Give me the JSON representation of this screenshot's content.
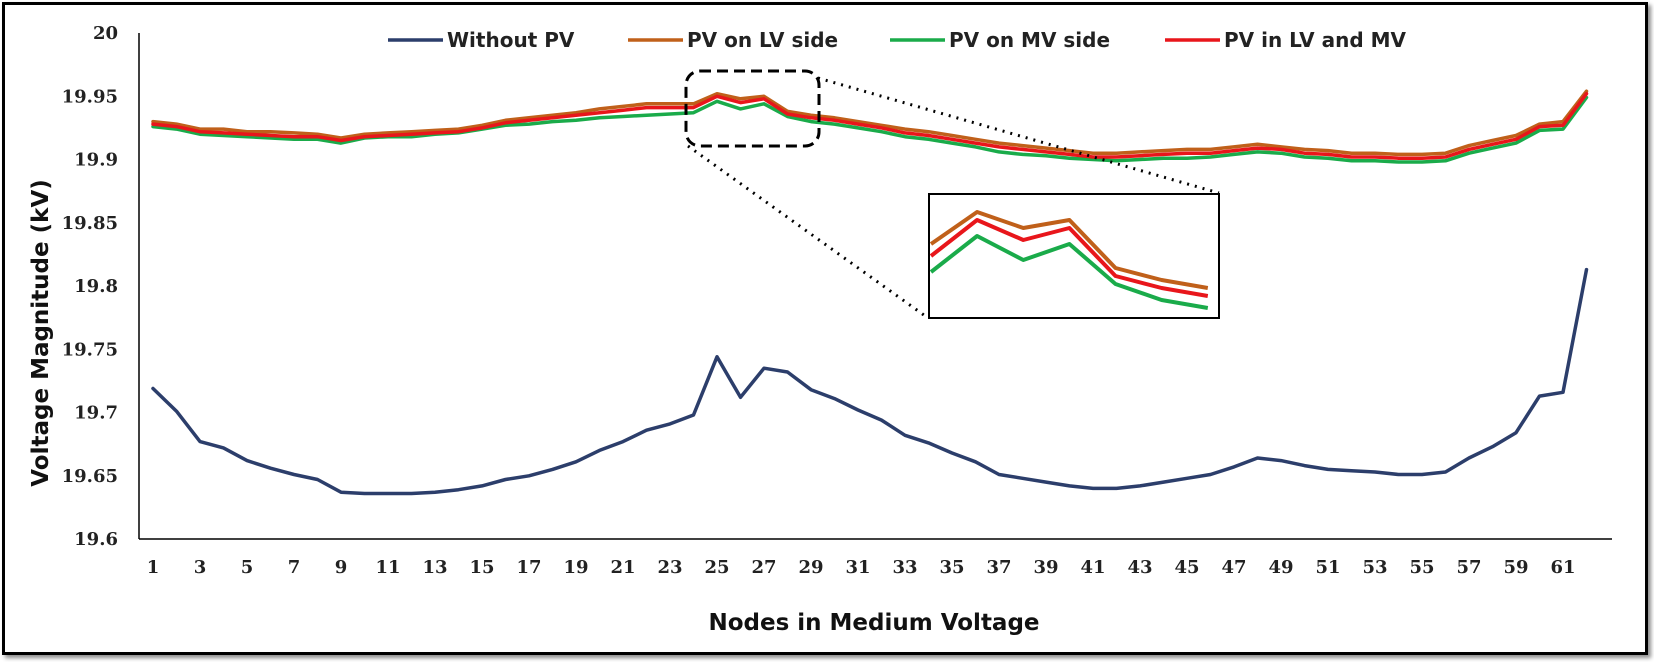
{
  "chart_data": {
    "type": "line",
    "xlabel": "Nodes in Medium Voltage",
    "ylabel": "Voltage Magnitude (kV)",
    "ylim": [
      19.6,
      20
    ],
    "yticks": [
      19.6,
      19.65,
      19.7,
      19.75,
      19.8,
      19.85,
      19.9,
      19.95,
      20
    ],
    "ytick_labels": [
      "19.6",
      "19.65",
      "19.7",
      "19.75",
      "19.8",
      "19.85",
      "19.9",
      "19.95",
      "20"
    ],
    "xticks": [
      1,
      3,
      5,
      7,
      9,
      11,
      13,
      15,
      17,
      19,
      21,
      23,
      25,
      27,
      29,
      31,
      33,
      35,
      37,
      39,
      41,
      43,
      45,
      47,
      49,
      51,
      53,
      55,
      57,
      59,
      61
    ],
    "x": [
      1,
      2,
      3,
      4,
      5,
      6,
      7,
      8,
      9,
      10,
      11,
      12,
      13,
      14,
      15,
      16,
      17,
      18,
      19,
      20,
      21,
      22,
      23,
      24,
      25,
      26,
      27,
      28,
      29,
      30,
      31,
      32,
      33,
      34,
      35,
      36,
      37,
      38,
      39,
      40,
      41,
      42,
      43,
      44,
      45,
      46,
      47,
      48,
      49,
      50,
      51,
      52,
      53,
      54,
      55,
      56,
      57,
      58,
      59,
      60,
      61,
      62
    ],
    "grid": false,
    "legend_position": "top",
    "series": [
      {
        "name": "Without PV",
        "color": "#2c3e6b",
        "values": [
          19.719,
          19.701,
          19.677,
          19.672,
          19.662,
          19.656,
          19.651,
          19.647,
          19.637,
          19.636,
          19.636,
          19.636,
          19.637,
          19.639,
          19.642,
          19.647,
          19.65,
          19.655,
          19.661,
          19.67,
          19.677,
          19.686,
          19.691,
          19.698,
          19.744,
          19.712,
          19.735,
          19.732,
          19.718,
          19.711,
          19.702,
          19.694,
          19.682,
          19.676,
          19.668,
          19.661,
          19.651,
          19.648,
          19.645,
          19.642,
          19.64,
          19.64,
          19.642,
          19.645,
          19.648,
          19.651,
          19.657,
          19.664,
          19.662,
          19.658,
          19.655,
          19.654,
          19.653,
          19.651,
          19.651,
          19.653,
          19.664,
          19.673,
          19.684,
          19.713,
          19.716,
          19.813
        ]
      },
      {
        "name": "PV on LV side",
        "color": "#c0601a",
        "values": [
          19.93,
          19.928,
          19.924,
          19.924,
          19.922,
          19.922,
          19.921,
          19.92,
          19.917,
          19.92,
          19.921,
          19.922,
          19.923,
          19.924,
          19.927,
          19.931,
          19.933,
          19.935,
          19.937,
          19.94,
          19.942,
          19.944,
          19.944,
          19.944,
          19.952,
          19.948,
          19.95,
          19.938,
          19.935,
          19.933,
          19.93,
          19.927,
          19.924,
          19.922,
          19.919,
          19.916,
          19.913,
          19.911,
          19.909,
          19.907,
          19.905,
          19.905,
          19.906,
          19.907,
          19.908,
          19.908,
          19.91,
          19.912,
          19.91,
          19.908,
          19.907,
          19.905,
          19.905,
          19.904,
          19.904,
          19.905,
          19.911,
          19.915,
          19.919,
          19.928,
          19.93,
          19.954
        ]
      },
      {
        "name": "PV on MV side",
        "color": "#1aab4a",
        "values": [
          19.926,
          19.924,
          19.92,
          19.919,
          19.918,
          19.917,
          19.916,
          19.916,
          19.913,
          19.917,
          19.918,
          19.918,
          19.92,
          19.921,
          19.924,
          19.927,
          19.928,
          19.93,
          19.931,
          19.933,
          19.934,
          19.935,
          19.936,
          19.937,
          19.946,
          19.94,
          19.944,
          19.934,
          19.93,
          19.928,
          19.925,
          19.922,
          19.918,
          19.916,
          19.913,
          19.91,
          19.906,
          19.904,
          19.903,
          19.901,
          19.9,
          19.899,
          19.9,
          19.901,
          19.901,
          19.902,
          19.904,
          19.906,
          19.905,
          19.902,
          19.901,
          19.899,
          19.899,
          19.898,
          19.898,
          19.899,
          19.905,
          19.909,
          19.913,
          19.923,
          19.924,
          19.949
        ]
      },
      {
        "name": "PV in LV and MV",
        "color": "#e8161b",
        "values": [
          19.928,
          19.926,
          19.922,
          19.921,
          19.92,
          19.919,
          19.918,
          19.918,
          19.915,
          19.918,
          19.919,
          19.92,
          19.921,
          19.922,
          19.925,
          19.929,
          19.931,
          19.933,
          19.935,
          19.937,
          19.939,
          19.941,
          19.941,
          19.941,
          19.95,
          19.945,
          19.948,
          19.936,
          19.933,
          19.931,
          19.928,
          19.925,
          19.921,
          19.919,
          19.916,
          19.913,
          19.91,
          19.908,
          19.906,
          19.904,
          19.902,
          19.902,
          19.903,
          19.904,
          19.905,
          19.905,
          19.907,
          19.909,
          19.908,
          19.905,
          19.904,
          19.902,
          19.902,
          19.901,
          19.901,
          19.902,
          19.908,
          19.912,
          19.916,
          19.926,
          19.927,
          19.952
        ]
      }
    ]
  }
}
